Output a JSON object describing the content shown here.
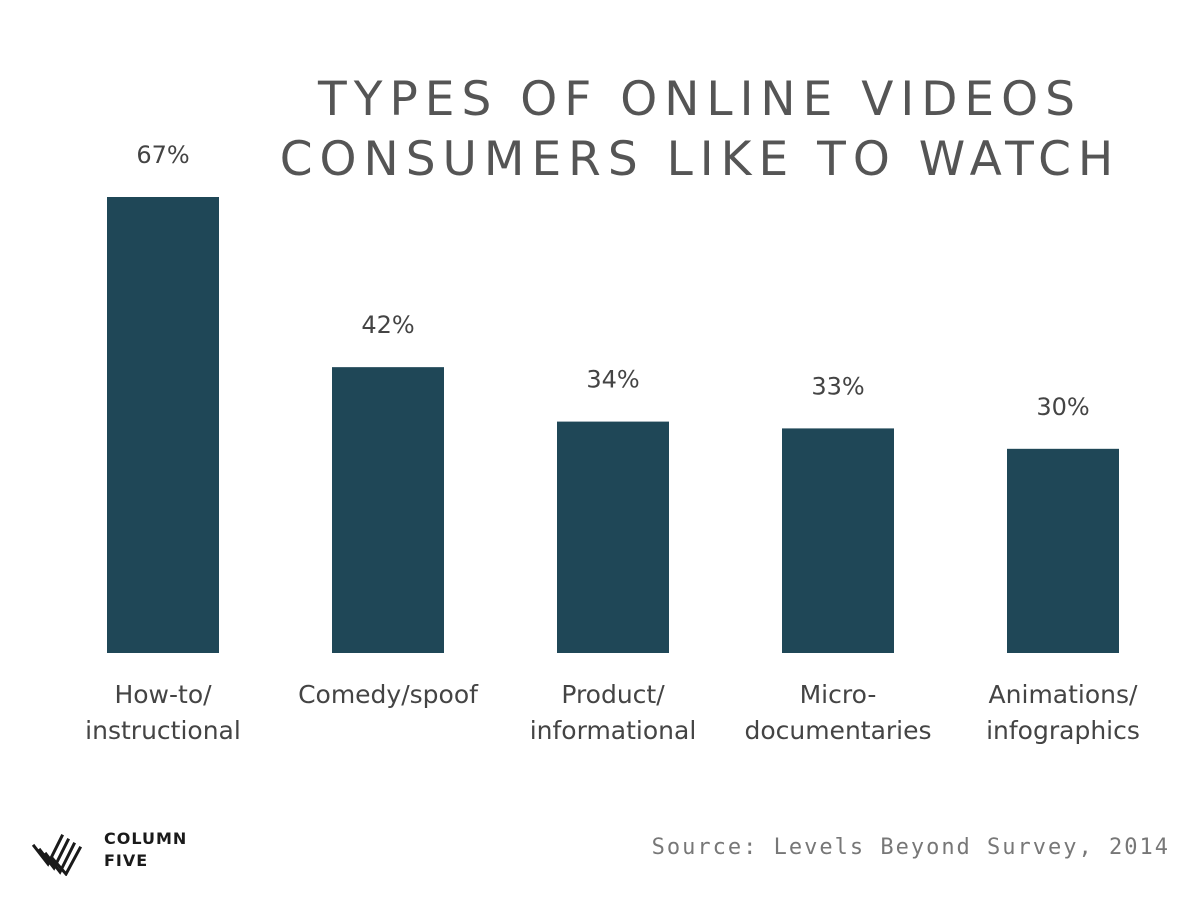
{
  "chart_data": {
    "type": "bar",
    "title_lines": [
      "TYPES OF ONLINE VIDEOS",
      "CONSUMERS LIKE TO WATCH"
    ],
    "categories": [
      [
        "How-to/",
        "instructional"
      ],
      [
        "Comedy/spoof"
      ],
      [
        "Product/",
        "informational"
      ],
      [
        "Micro-",
        "documentaries"
      ],
      [
        "Animations/",
        "infographics"
      ]
    ],
    "values": [
      67,
      42,
      34,
      33,
      30
    ],
    "data_labels": [
      "67%",
      "42%",
      "34%",
      "33%",
      "30%"
    ],
    "ylim": [
      0,
      100
    ],
    "grid": false,
    "bar_color": "#1f4757"
  },
  "footer": {
    "logo_line1": "COLUMN",
    "logo_line2": "FIVE",
    "source": "Source: Levels Beyond Survey, 2014"
  }
}
